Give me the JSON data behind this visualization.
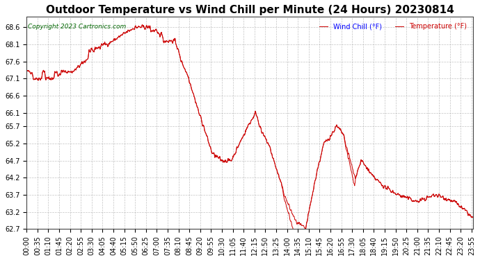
{
  "title": "Outdoor Temperature vs Wind Chill per Minute (24 Hours) 20230814",
  "copyright": "Copyright 2023 Cartronics.com",
  "legend_wind_chill": "Wind Chill (°F)",
  "legend_temperature": "Temperature (°F)",
  "ylabel": "",
  "ylim": [
    62.7,
    68.9
  ],
  "yticks": [
    62.7,
    63.2,
    63.7,
    64.2,
    64.7,
    65.2,
    65.7,
    66.1,
    66.6,
    67.1,
    67.6,
    68.1,
    68.6
  ],
  "background_color": "#ffffff",
  "plot_background": "#ffffff",
  "grid_color": "#aaaaaa",
  "line_color": "#cc0000",
  "wind_chill_color": "#0000ff",
  "temperature_color": "#cc0000",
  "title_fontsize": 11,
  "tick_fontsize": 7,
  "n_minutes": 1440,
  "x_tick_interval": 35
}
